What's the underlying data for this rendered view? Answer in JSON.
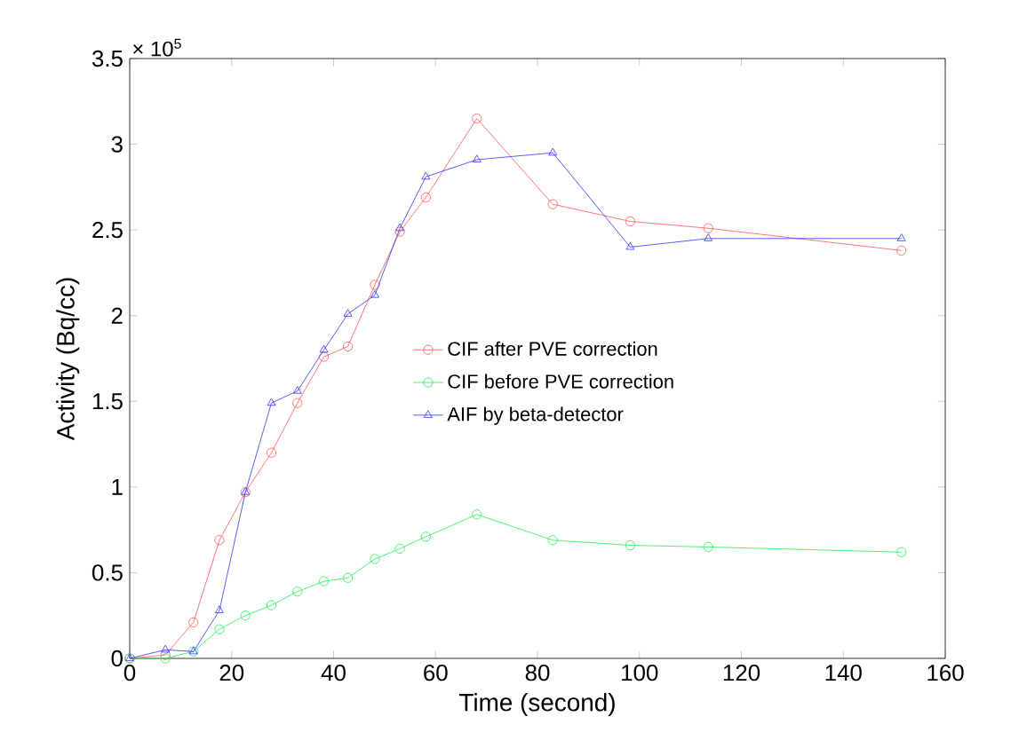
{
  "chart_data": {
    "type": "line",
    "xlabel": "Time (second)",
    "ylabel": "Activity (Bq/cc)",
    "annotations": [
      "× 10$^{5}$"
    ],
    "xlim": [
      0,
      160
    ],
    "xticks": [
      0,
      20,
      40,
      60,
      80,
      100,
      120,
      140,
      160
    ],
    "ylim": [
      0,
      3.5
    ],
    "yticks": [
      0,
      0.5,
      1,
      1.5,
      2,
      2.5,
      3,
      3.5
    ],
    "grid": false,
    "legend": "right",
    "line_style": "solid",
    "series": [
      {
        "name": "CIF after PVE correction",
        "color": "#ff5555",
        "marker": "circle",
        "x": [
          0,
          7.0,
          12.5,
          17.6,
          22.7,
          27.8,
          32.9,
          38.1,
          42.8,
          48.1,
          53.0,
          58.1,
          68.1,
          83.0,
          98.2,
          113.5,
          151.4
        ],
        "values": [
          0,
          0.02,
          0.21,
          0.69,
          0.97,
          1.2,
          1.49,
          1.76,
          1.82,
          2.18,
          2.49,
          2.69,
          3.15,
          2.65,
          2.55,
          2.51,
          2.38
        ]
      },
      {
        "name": "CIF before PVE correction",
        "color": "#22ee55",
        "marker": "circle",
        "x": [
          0,
          7.0,
          12.5,
          17.6,
          22.7,
          27.8,
          32.9,
          38.1,
          42.8,
          48.1,
          53.0,
          58.1,
          68.1,
          83.0,
          98.2,
          113.5,
          151.4
        ],
        "values": [
          0,
          0,
          0.04,
          0.17,
          0.25,
          0.31,
          0.39,
          0.45,
          0.47,
          0.58,
          0.64,
          0.71,
          0.84,
          0.69,
          0.66,
          0.65,
          0.62
        ]
      },
      {
        "name": "AIF by beta-detector",
        "color": "#3333ff",
        "marker": "triangle",
        "x": [
          0,
          7.0,
          12.5,
          17.6,
          22.7,
          27.8,
          32.9,
          38.1,
          42.8,
          48.1,
          53.0,
          58.1,
          68.1,
          83.0,
          98.2,
          113.5,
          151.4
        ],
        "values": [
          0,
          0.05,
          0.04,
          0.28,
          0.97,
          1.49,
          1.56,
          1.8,
          2.01,
          2.12,
          2.51,
          2.81,
          2.91,
          2.95,
          2.4,
          2.45,
          2.45
        ]
      }
    ]
  }
}
